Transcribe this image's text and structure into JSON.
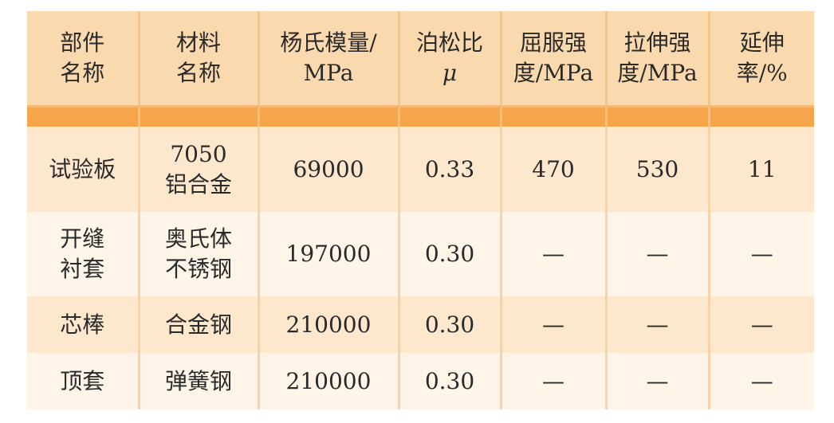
{
  "headers": [
    [
      "部件",
      "名称"
    ],
    [
      "材料",
      "名称"
    ],
    [
      "杨氏模量/",
      "MPa"
    ],
    [
      "泊松比",
      "μ"
    ],
    [
      "屈服强",
      "度/MPa"
    ],
    [
      "拉伸强",
      "度/MPa"
    ],
    [
      "延伸",
      "率/%"
    ]
  ],
  "rows": [
    {
      "part": [
        "试验板"
      ],
      "material": [
        "7050",
        "铝合金"
      ],
      "youngs_modulus": "69000",
      "poisson": "0.33",
      "yield_strength": "470",
      "tensile_strength": "530",
      "elongation": "11"
    },
    {
      "part": [
        "开缝",
        "衬套"
      ],
      "material": [
        "奥氏体",
        "不锈钢"
      ],
      "youngs_modulus": "197000",
      "poisson": "0.30",
      "yield_strength": "—",
      "tensile_strength": "—",
      "elongation": "—"
    },
    {
      "part": [
        "芯棒"
      ],
      "material": [
        "合金钢"
      ],
      "youngs_modulus": "210000",
      "poisson": "0.30",
      "yield_strength": "—",
      "tensile_strength": "—",
      "elongation": "—"
    },
    {
      "part": [
        "顶套"
      ],
      "material": [
        "弹簧钢"
      ],
      "youngs_modulus": "210000",
      "poisson": "0.30",
      "yield_strength": "—",
      "tensile_strength": "—",
      "elongation": "—"
    }
  ]
}
